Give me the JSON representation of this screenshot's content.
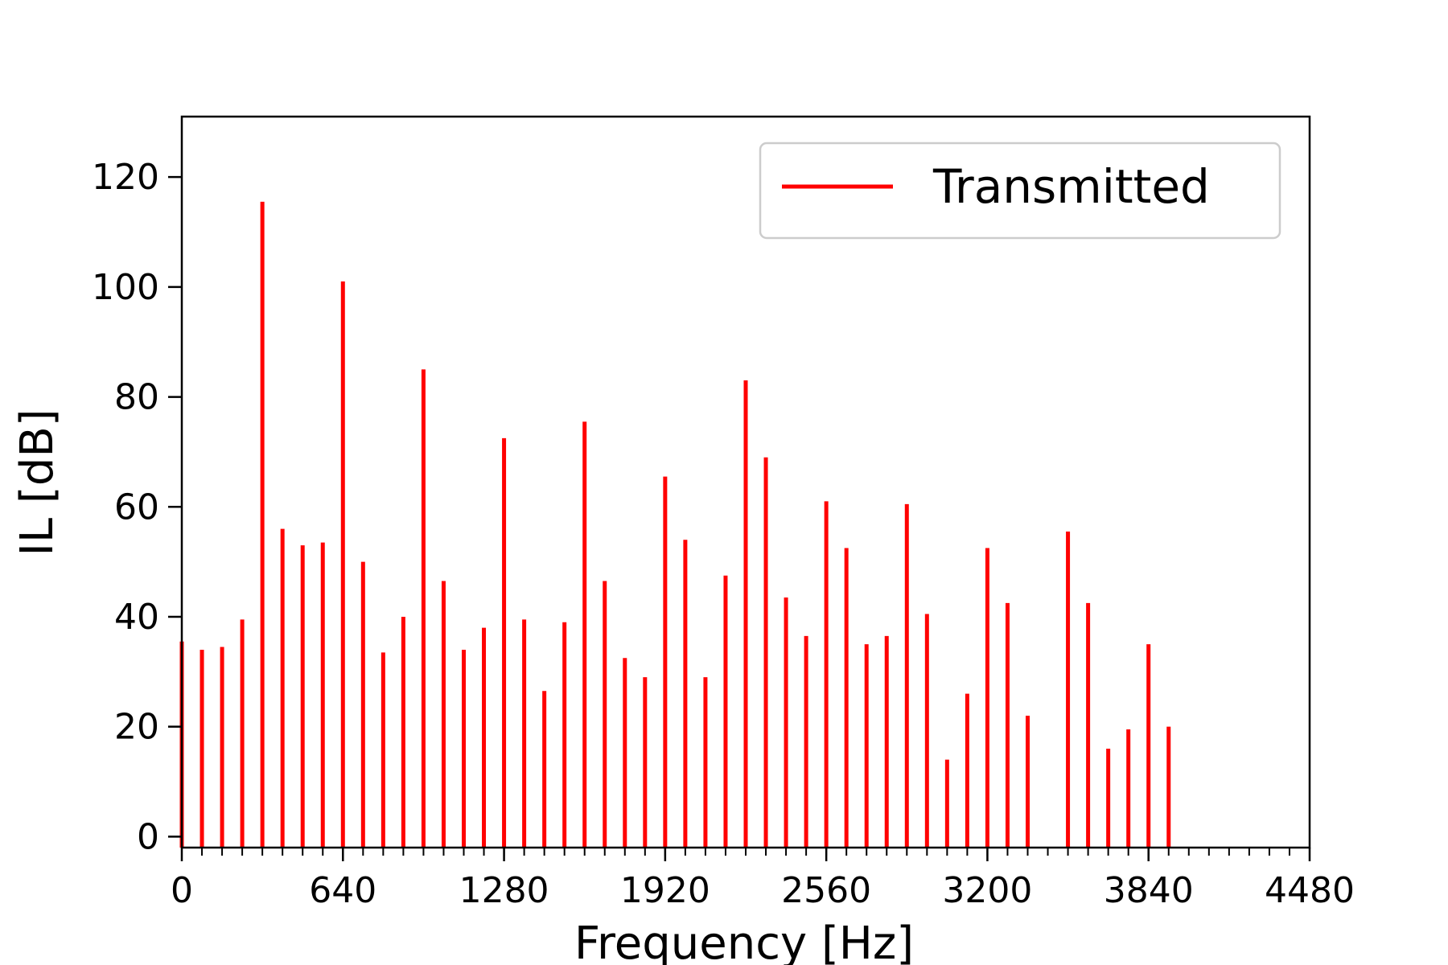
{
  "chart_data": {
    "type": "bar",
    "title": "",
    "xlabel": "Frequency [Hz]",
    "ylabel": "IL [dB]",
    "xlim": [
      0,
      4480
    ],
    "ylim": [
      -2,
      131
    ],
    "x_major_ticks": [
      0,
      640,
      1280,
      1920,
      2560,
      3200,
      3840,
      4480
    ],
    "x_minor_step": 80,
    "y_ticks": [
      0,
      20,
      40,
      60,
      80,
      100,
      120
    ],
    "grid": false,
    "legend_position": "top-right",
    "series": [
      {
        "name": "Transmitted",
        "color": "#ff0000",
        "x": [
          0,
          80,
          160,
          240,
          320,
          400,
          480,
          560,
          640,
          720,
          800,
          880,
          960,
          1040,
          1120,
          1200,
          1280,
          1360,
          1440,
          1520,
          1600,
          1680,
          1760,
          1840,
          1920,
          2000,
          2080,
          2160,
          2240,
          2320,
          2400,
          2480,
          2560,
          2640,
          2720,
          2800,
          2880,
          2960,
          3040,
          3120,
          3200,
          3280,
          3360,
          3440,
          3520,
          3600,
          3680,
          3760,
          3840,
          3920
        ],
        "values": [
          35.5,
          34,
          34.5,
          39.5,
          115.5,
          56,
          53,
          53.5,
          101,
          50,
          33.5,
          40,
          85,
          46.5,
          34,
          38,
          72.5,
          39.5,
          26.5,
          39,
          75.5,
          46.5,
          32.5,
          29,
          65.5,
          54,
          29,
          47.5,
          83,
          69,
          43.5,
          36.5,
          61,
          52.5,
          35,
          36.5,
          60.5,
          40.5,
          14,
          26,
          52.5,
          42.5,
          22,
          0,
          55.5,
          42.5,
          16,
          19.5,
          35,
          20
        ]
      }
    ]
  }
}
